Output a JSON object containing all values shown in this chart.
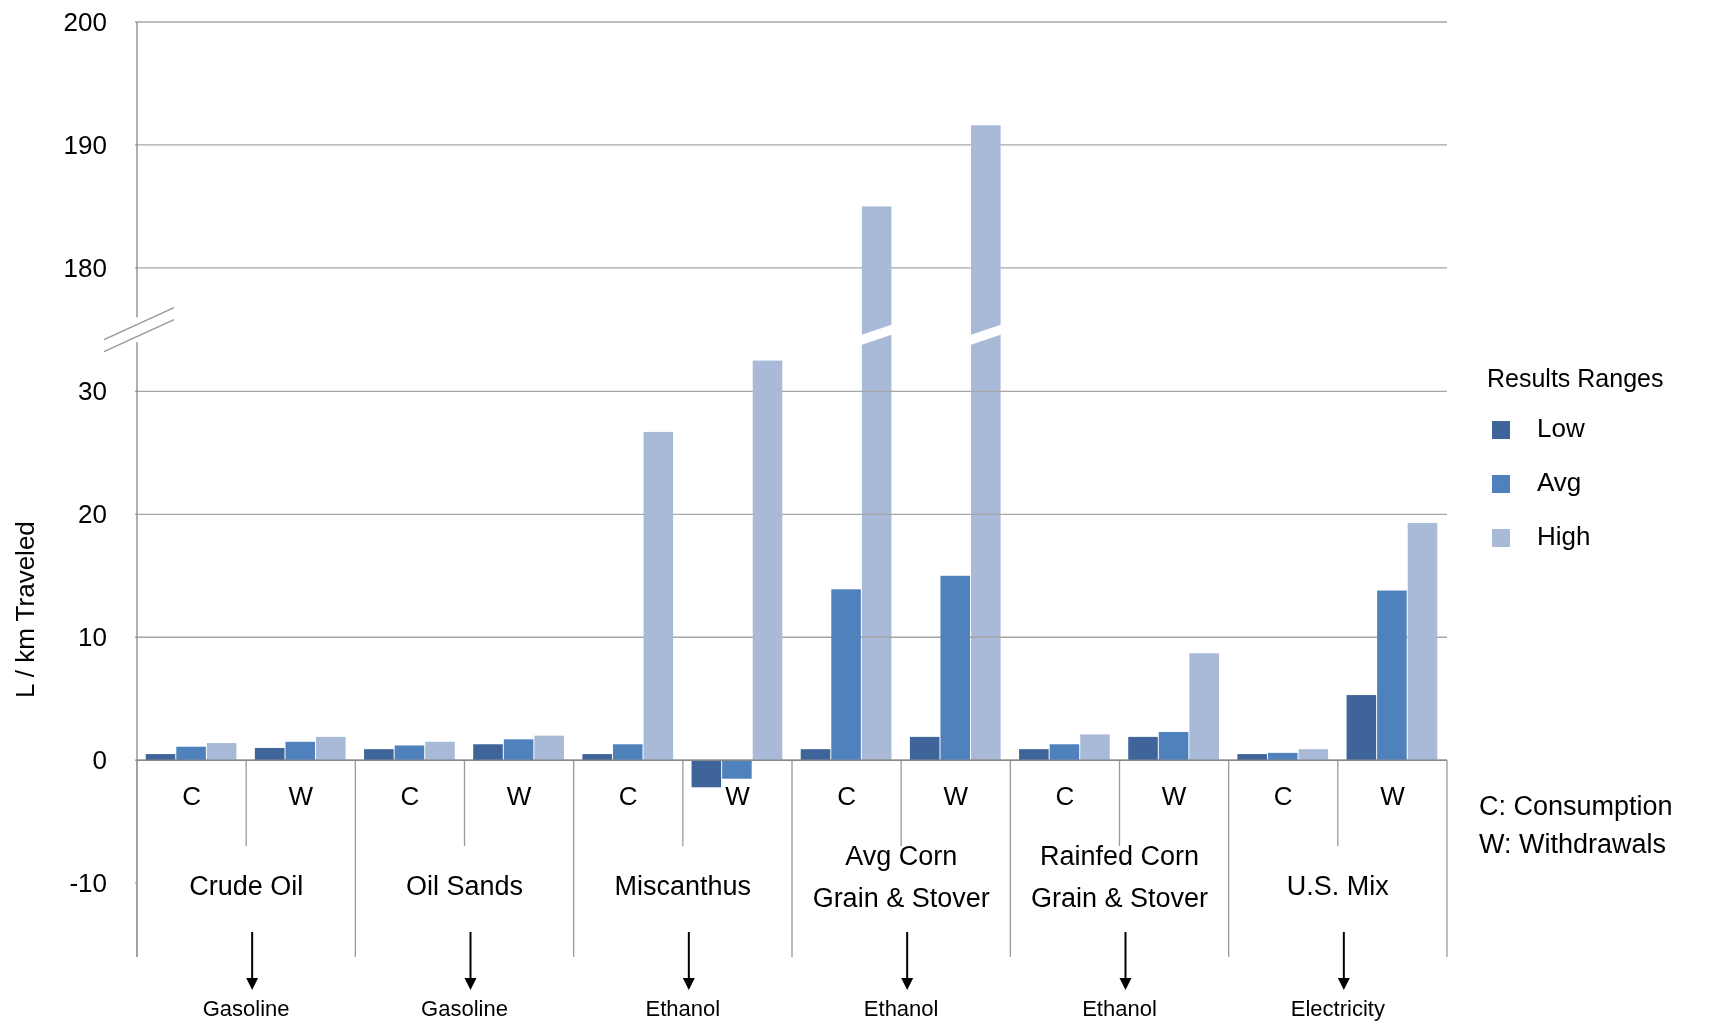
{
  "chart_data": [
    {
      "type": "bar",
      "categories": [
        null,
        null,
        null,
        null,
        null,
        null,
        null,
        null,
        null,
        null,
        null,
        null
      ],
      "tick_labels": "y",
      "grid": "y",
      "series": [
        {
          "color": "#a9b9d8",
          "values": [
            null,
            null,
            null,
            null,
            null,
            null,
            185.0,
            191.6,
            null,
            null,
            null,
            null
          ]
        }
      ],
      "ylim": [
        176,
        200
      ],
      "yticks": [
        180,
        190,
        200
      ]
    },
    {
      "type": "bar",
      "ylabel": "L / km Traveled",
      "legend_title": "Results Ranges",
      "legend": "right",
      "grid": "y",
      "categories": [
        "C",
        "W",
        "C",
        "W",
        "C",
        "W",
        "C",
        "W",
        "C",
        "W",
        "C",
        "W"
      ],
      "series": [
        {
          "name": "Low",
          "color": "#3f6499",
          "values": [
            0.5,
            1.0,
            0.9,
            1.3,
            0.5,
            -2.2,
            0.9,
            1.9,
            0.9,
            1.9,
            0.5,
            5.3
          ]
        },
        {
          "name": "Avg",
          "color": "#4f81bd",
          "values": [
            1.1,
            1.5,
            1.2,
            1.7,
            1.3,
            -1.5,
            13.9,
            15.0,
            1.3,
            2.3,
            0.6,
            13.8
          ]
        },
        {
          "name": "High",
          "color": "#a9b9d8",
          "values": [
            1.4,
            1.9,
            1.5,
            2.0,
            26.7,
            32.5,
            null,
            null,
            2.1,
            8.7,
            0.9,
            19.3
          ]
        }
      ],
      "ylim": [
        -16,
        34
      ],
      "yticks": [
        -10,
        0,
        10,
        20,
        30
      ],
      "annotations": [
        "Crude Oil",
        "Oil Sands",
        "Miscanthus",
        "Avg Corn Grain & Stover",
        "Rainfed Corn Grain & Stover",
        "U.S. Mix",
        "Gasoline",
        "Gasoline",
        "Ethanol",
        "Ethanol",
        "Ethanol",
        "Electricity",
        "C: Consumption",
        "W: Withdrawals"
      ]
    }
  ]
}
